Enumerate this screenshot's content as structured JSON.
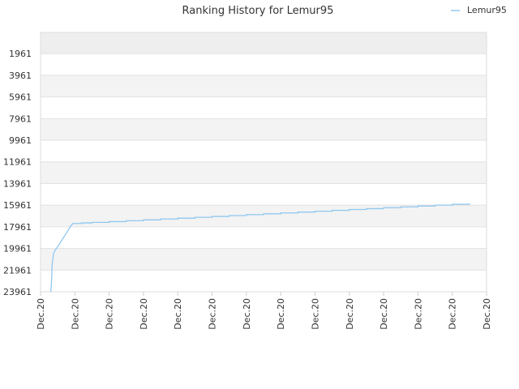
{
  "chart_data": {
    "type": "line",
    "title": "Ranking History for Lemur95",
    "xlabel": "",
    "ylabel": "",
    "y_reversed": true,
    "ylim": [
      23961,
      0
    ],
    "y_ticks": [
      1961,
      3961,
      5961,
      7961,
      9961,
      11961,
      13961,
      15961,
      17961,
      19961,
      21961,
      23961
    ],
    "x_ticks": [
      "Dec.20",
      "Dec.20",
      "Dec.20",
      "Dec.20",
      "Dec.20",
      "Dec.20",
      "Dec.20",
      "Dec.20",
      "Dec.20",
      "Dec.20",
      "Dec.20",
      "Dec.20",
      "Dec.20",
      "Dec.20"
    ],
    "legend_position": "top-right",
    "grid": true,
    "series": [
      {
        "name": "Lemur95",
        "color": "#90c8f0",
        "x": [
          0.3,
          0.32,
          0.34,
          0.38,
          0.42,
          0.5,
          0.6,
          0.7,
          0.8,
          0.9,
          0.95,
          1.0,
          1.2,
          1.5,
          2.0,
          2.5,
          3.0,
          3.5,
          4.0,
          4.5,
          5.0,
          5.5,
          6.0,
          6.5,
          7.0,
          7.5,
          8.0,
          8.5,
          9.0,
          9.5,
          10.0,
          10.5,
          11.0,
          11.5,
          12.0,
          12.5
        ],
        "y": [
          23961,
          23000,
          21400,
          20400,
          20150,
          19800,
          19300,
          18800,
          18300,
          17800,
          17650,
          17650,
          17600,
          17550,
          17480,
          17400,
          17320,
          17240,
          17160,
          17080,
          17000,
          16920,
          16840,
          16760,
          16680,
          16600,
          16520,
          16440,
          16360,
          16280,
          16200,
          16120,
          16040,
          15960,
          15880,
          15800
        ]
      }
    ]
  }
}
